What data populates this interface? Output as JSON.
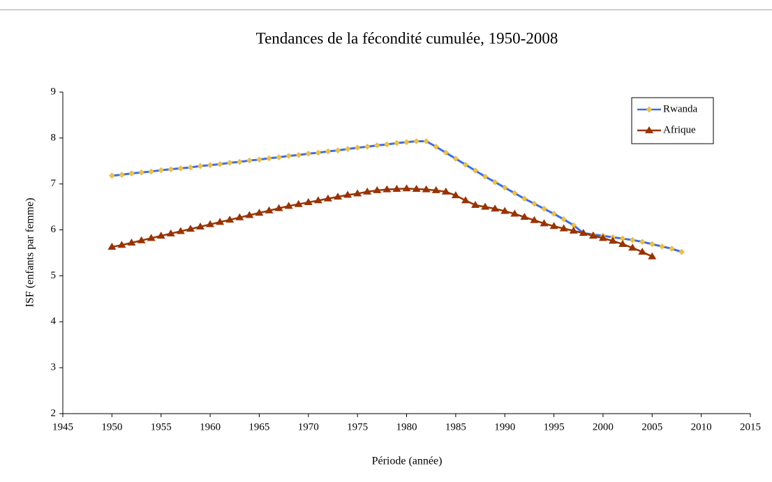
{
  "chart_data": {
    "type": "line",
    "title": "Tendances de la fécondité cumulée, 1950-2008",
    "x_label": "Période (année)",
    "y_label": "ISF (enfants par femme)",
    "x": [
      1950,
      1951,
      1952,
      1953,
      1954,
      1955,
      1956,
      1957,
      1958,
      1959,
      1960,
      1961,
      1962,
      1963,
      1964,
      1965,
      1966,
      1967,
      1968,
      1969,
      1970,
      1971,
      1972,
      1973,
      1974,
      1975,
      1976,
      1977,
      1978,
      1979,
      1980,
      1981,
      1982,
      1983,
      1984,
      1985,
      1986,
      1987,
      1988,
      1989,
      1990,
      1991,
      1992,
      1993,
      1994,
      1995,
      1996,
      1997,
      1998,
      1999,
      2000,
      2001,
      2002,
      2003,
      2004,
      2005,
      2006,
      2007,
      2008
    ],
    "series": [
      {
        "name": "Rwanda",
        "color": "#3a6cf0",
        "marker": "diamond",
        "marker_color": "#f0c23c",
        "values": [
          7.18,
          7.2,
          7.23,
          7.25,
          7.27,
          7.3,
          7.32,
          7.34,
          7.36,
          7.39,
          7.41,
          7.43,
          7.46,
          7.48,
          7.51,
          7.53,
          7.56,
          7.58,
          7.61,
          7.63,
          7.66,
          7.68,
          7.71,
          7.73,
          7.76,
          7.79,
          7.81,
          7.84,
          7.86,
          7.89,
          7.91,
          7.93,
          7.93,
          7.81,
          7.68,
          7.55,
          7.42,
          7.29,
          7.16,
          7.04,
          6.92,
          6.8,
          6.68,
          6.57,
          6.46,
          6.35,
          6.23,
          6.1,
          5.93,
          5.9,
          5.87,
          5.84,
          5.81,
          5.78,
          5.74,
          5.69,
          5.64,
          5.59,
          5.52
        ]
      },
      {
        "name": "Afrique",
        "color": "#993300",
        "marker": "triangle",
        "marker_color": "#993300",
        "values": [
          5.63,
          5.67,
          5.72,
          5.77,
          5.82,
          5.87,
          5.92,
          5.97,
          6.02,
          6.07,
          6.12,
          6.17,
          6.22,
          6.27,
          6.32,
          6.37,
          6.42,
          6.47,
          6.52,
          6.56,
          6.6,
          6.64,
          6.68,
          6.72,
          6.76,
          6.79,
          6.83,
          6.86,
          6.88,
          6.89,
          6.9,
          6.89,
          6.88,
          6.86,
          6.83,
          6.75,
          6.64,
          6.54,
          6.5,
          6.46,
          6.41,
          6.35,
          6.28,
          6.21,
          6.14,
          6.08,
          6.03,
          5.98,
          5.93,
          5.87,
          5.82,
          5.76,
          5.69,
          5.61,
          5.52,
          5.42,
          null,
          null,
          null
        ]
      }
    ],
    "xlim": [
      1945,
      2015
    ],
    "xticks": [
      1945,
      1950,
      1955,
      1960,
      1965,
      1970,
      1975,
      1980,
      1985,
      1990,
      1995,
      2000,
      2005,
      2010,
      2015
    ],
    "ylim": [
      2,
      9
    ],
    "yticks": [
      2,
      3,
      4,
      5,
      6,
      7,
      8,
      9
    ],
    "grid": false,
    "legend": "upper-right"
  }
}
